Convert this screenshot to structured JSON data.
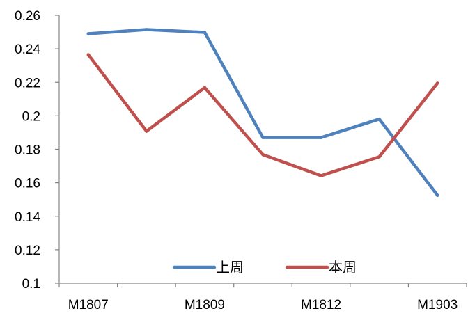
{
  "chart_data": {
    "type": "line",
    "categories": [
      "M1807",
      "",
      "M1809",
      "",
      "M1812",
      "",
      "M1903"
    ],
    "series": [
      {
        "name": "上周",
        "color": "#4F81BD",
        "values": [
          0.249,
          0.2515,
          0.2498,
          0.187,
          0.187,
          0.198,
          0.1525
        ]
      },
      {
        "name": "本周",
        "color": "#C0504D",
        "values": [
          0.2365,
          0.1908,
          0.2168,
          0.1768,
          0.1642,
          0.1755,
          0.2195
        ]
      }
    ],
    "ylim": [
      0.1,
      0.26
    ],
    "yticks": [
      "0.1",
      "0.12",
      "0.14",
      "0.16",
      "0.18",
      "0.2",
      "0.22",
      "0.24",
      "0.26"
    ],
    "grid": false,
    "legend": "bottom-center"
  }
}
